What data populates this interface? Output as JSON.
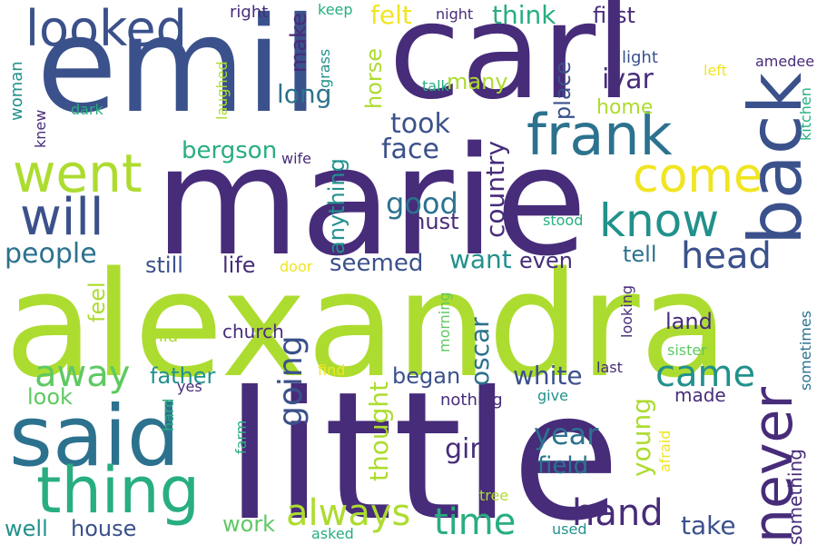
{
  "word_cloud": {
    "palette": {
      "purple": "#472c7a",
      "indigo": "#3b518b",
      "blue": "#2c728e",
      "teal": "#21918c",
      "green": "#28ae80",
      "lightgreen": "#5ec962",
      "yellowgreen": "#addc30",
      "yellow": "#f0e521"
    },
    "words": [
      {
        "text": "alexandra",
        "color": "yellowgreen"
      },
      {
        "text": "little",
        "color": "purple"
      },
      {
        "text": "marie",
        "color": "purple"
      },
      {
        "text": "emil",
        "color": "indigo"
      },
      {
        "text": "carl",
        "color": "purple"
      },
      {
        "text": "back",
        "color": "indigo"
      },
      {
        "text": "said",
        "color": "blue"
      },
      {
        "text": "thing",
        "color": "green"
      },
      {
        "text": "frank",
        "color": "blue"
      },
      {
        "text": "looked",
        "color": "indigo"
      },
      {
        "text": "went",
        "color": "yellowgreen"
      },
      {
        "text": "will",
        "color": "indigo"
      },
      {
        "text": "know",
        "color": "teal"
      },
      {
        "text": "come",
        "color": "yellow"
      },
      {
        "text": "never",
        "color": "purple"
      },
      {
        "text": "head",
        "color": "indigo"
      },
      {
        "text": "away",
        "color": "lightgreen"
      },
      {
        "text": "came",
        "color": "teal"
      },
      {
        "text": "always",
        "color": "yellowgreen"
      },
      {
        "text": "time",
        "color": "green"
      },
      {
        "text": "hand",
        "color": "purple"
      },
      {
        "text": "going",
        "color": "indigo"
      },
      {
        "text": "people",
        "color": "blue"
      },
      {
        "text": "felt",
        "color": "yellow"
      },
      {
        "text": "think",
        "color": "green"
      },
      {
        "text": "first",
        "color": "purple"
      },
      {
        "text": "long",
        "color": "blue"
      },
      {
        "text": "took",
        "color": "indigo"
      },
      {
        "text": "face",
        "color": "indigo"
      },
      {
        "text": "ivar",
        "color": "purple"
      },
      {
        "text": "home",
        "color": "yellowgreen"
      },
      {
        "text": "good",
        "color": "blue"
      },
      {
        "text": "must",
        "color": "purple"
      },
      {
        "text": "country",
        "color": "purple"
      },
      {
        "text": "want",
        "color": "teal"
      },
      {
        "text": "even",
        "color": "purple"
      },
      {
        "text": "tell",
        "color": "blue"
      },
      {
        "text": "still",
        "color": "indigo"
      },
      {
        "text": "life",
        "color": "purple"
      },
      {
        "text": "seemed",
        "color": "indigo"
      },
      {
        "text": "bergson",
        "color": "green"
      },
      {
        "text": "anything",
        "color": "teal"
      },
      {
        "text": "make",
        "color": "purple"
      },
      {
        "text": "horse",
        "color": "yellowgreen"
      },
      {
        "text": "place",
        "color": "indigo"
      },
      {
        "text": "many",
        "color": "yellowgreen"
      },
      {
        "text": "land",
        "color": "purple"
      },
      {
        "text": "oscar",
        "color": "blue"
      },
      {
        "text": "white",
        "color": "indigo"
      },
      {
        "text": "father",
        "color": "teal"
      },
      {
        "text": "look",
        "color": "lightgreen"
      },
      {
        "text": "began",
        "color": "indigo"
      },
      {
        "text": "thought",
        "color": "yellowgreen"
      },
      {
        "text": "made",
        "color": "purple"
      },
      {
        "text": "girl",
        "color": "purple"
      },
      {
        "text": "year",
        "color": "blue"
      },
      {
        "text": "field",
        "color": "blue"
      },
      {
        "text": "young",
        "color": "yellowgreen"
      },
      {
        "text": "take",
        "color": "indigo"
      },
      {
        "text": "something",
        "color": "purple"
      },
      {
        "text": "work",
        "color": "lightgreen"
      },
      {
        "text": "well",
        "color": "teal"
      },
      {
        "text": "house",
        "color": "indigo"
      },
      {
        "text": "church",
        "color": "purple"
      },
      {
        "text": "feel",
        "color": "yellowgreen"
      },
      {
        "text": "wild",
        "color": "yellowgreen"
      },
      {
        "text": "door",
        "color": "yellow"
      },
      {
        "text": "morning",
        "color": "lightgreen"
      },
      {
        "text": "looking",
        "color": "purple"
      },
      {
        "text": "sometimes",
        "color": "blue"
      },
      {
        "text": "sister",
        "color": "lightgreen"
      },
      {
        "text": "last",
        "color": "purple"
      },
      {
        "text": "give",
        "color": "teal"
      },
      {
        "text": "nothing",
        "color": "purple"
      },
      {
        "text": "find",
        "color": "yellow"
      },
      {
        "text": "yes",
        "color": "purple"
      },
      {
        "text": "hard",
        "color": "green"
      },
      {
        "text": "farm",
        "color": "green"
      },
      {
        "text": "afraid",
        "color": "yellow"
      },
      {
        "text": "tree",
        "color": "yellowgreen"
      },
      {
        "text": "asked",
        "color": "green"
      },
      {
        "text": "used",
        "color": "teal"
      },
      {
        "text": "stood",
        "color": "green"
      },
      {
        "text": "light",
        "color": "indigo"
      },
      {
        "text": "left",
        "color": "yellow"
      },
      {
        "text": "amedee",
        "color": "purple"
      },
      {
        "text": "kitchen",
        "color": "green"
      },
      {
        "text": "talk",
        "color": "green"
      },
      {
        "text": "grass",
        "color": "teal"
      },
      {
        "text": "keep",
        "color": "green"
      },
      {
        "text": "night",
        "color": "purple"
      },
      {
        "text": "right",
        "color": "purple"
      },
      {
        "text": "laughed",
        "color": "yellowgreen"
      },
      {
        "text": "woman",
        "color": "teal"
      },
      {
        "text": "knew",
        "color": "purple"
      },
      {
        "text": "dark",
        "color": "green"
      },
      {
        "text": "wife",
        "color": "purple"
      }
    ]
  }
}
